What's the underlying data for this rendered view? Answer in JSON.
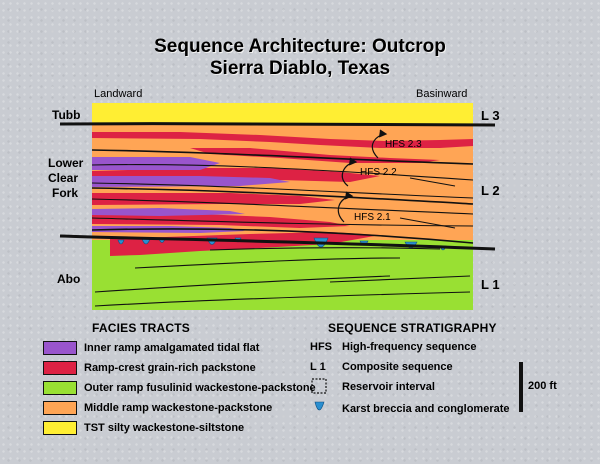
{
  "title": {
    "line1": "Sequence Architecture: Outcrop",
    "line2": "Sierra Diablo, Texas"
  },
  "direction": {
    "landward": "Landward",
    "basinward": "Basinward"
  },
  "formations": {
    "tubb": "Tubb",
    "lower_clear_fork": [
      "Lower",
      "Clear",
      "Fork"
    ],
    "abo": "Abo"
  },
  "sequences": {
    "l3": "L 3",
    "l2": "L 2",
    "l1": "L 1"
  },
  "hfs": {
    "hfs23": "HFS 2.3",
    "hfs22": "HFS 2.2",
    "hfs21": "HFS 2.1"
  },
  "facies": {
    "heading": "FACIES TRACTS",
    "items": [
      {
        "label": "Inner ramp amalgamated tidal flat",
        "color": "#9955cc"
      },
      {
        "label": "Ramp-crest grain-rich packstone",
        "color": "#dd2244"
      },
      {
        "label": "Outer ramp fusulinid wackestone-packstone",
        "color": "#99e033"
      },
      {
        "label": "Middle ramp wackestone-packstone",
        "color": "#ffa555"
      },
      {
        "label": "TST silty wackestone-siltstone",
        "color": "#ffee33"
      }
    ]
  },
  "stratigraphy": {
    "heading": "SEQUENCE STRATIGRAPHY",
    "items": [
      {
        "symbol": "HFS",
        "label": "High-frequency sequence"
      },
      {
        "symbol": "L 1",
        "label": "Composite sequence"
      },
      {
        "symbol": "box",
        "label": "Reservoir interval"
      },
      {
        "symbol": "karst",
        "label": "Karst breccia and conglomerate"
      }
    ]
  },
  "scale": {
    "label": "200 ft"
  },
  "colors": {
    "purple": "#9955cc",
    "red": "#dd2244",
    "green": "#99e033",
    "orange": "#ffa555",
    "yellow": "#ffee33",
    "karst_blue": "#2a8fd0"
  }
}
